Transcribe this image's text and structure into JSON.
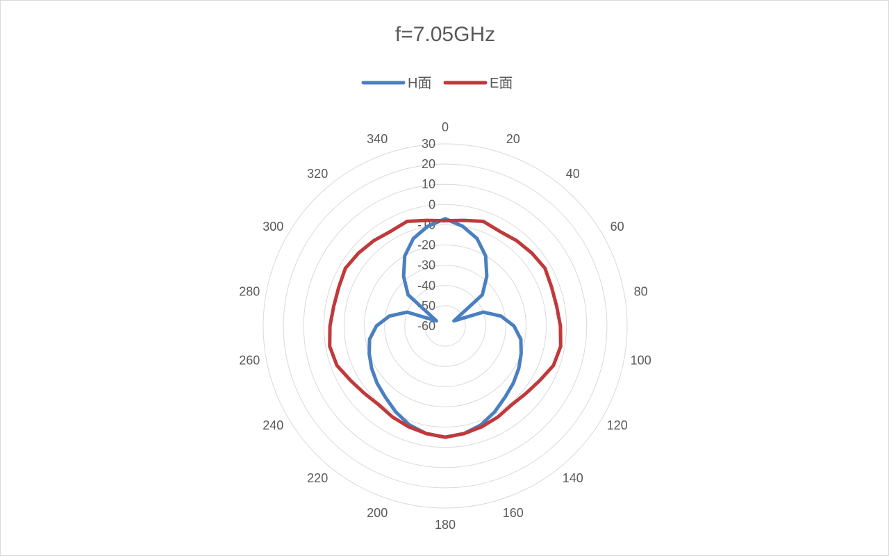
{
  "chart_data": {
    "type": "line",
    "subtype": "radar",
    "title": "f=7.05GHz",
    "legend_position": "top",
    "grid": true,
    "angle_tick_labels": [
      "0",
      "20",
      "40",
      "60",
      "80",
      "100",
      "120",
      "140",
      "160",
      "180",
      "200",
      "220",
      "240",
      "260",
      "280",
      "300",
      "320",
      "340"
    ],
    "radial_tick_labels": [
      "30",
      "20",
      "10",
      "0",
      "-10",
      "-20",
      "-30",
      "-40",
      "-50",
      "-60"
    ],
    "rlim": [
      -60,
      30
    ],
    "series": [
      {
        "name": "H面",
        "color": "#4a7fc1",
        "angles": [
          0,
          10,
          20,
          30,
          40,
          50,
          60,
          70,
          80,
          90,
          100,
          110,
          120,
          130,
          140,
          150,
          160,
          170,
          180,
          190,
          200,
          210,
          220,
          230,
          240,
          250,
          260,
          270,
          280,
          290,
          300,
          310,
          320,
          330,
          340,
          350
        ],
        "values": [
          -7,
          -10,
          -14,
          -20,
          -28,
          -36,
          -55,
          -40,
          -32,
          -26,
          -22,
          -20,
          -18,
          -16,
          -14,
          -11,
          -8,
          -6,
          -5,
          -6,
          -8,
          -11,
          -14,
          -16,
          -18,
          -20,
          -22,
          -26,
          -32,
          -40,
          -55,
          -36,
          -28,
          -20,
          -14,
          -10
        ]
      },
      {
        "name": "E面",
        "color": "#c0393b",
        "angles": [
          0,
          10,
          20,
          30,
          40,
          50,
          60,
          70,
          80,
          90,
          100,
          110,
          120,
          130,
          140,
          150,
          160,
          170,
          180,
          190,
          200,
          210,
          220,
          230,
          240,
          250,
          260,
          270,
          280,
          290,
          300,
          310,
          320,
          330,
          340,
          350
        ],
        "values": [
          -8,
          -7,
          -5,
          -6,
          -5,
          -4,
          -3,
          -4,
          -4,
          -3,
          -2,
          -3,
          -6,
          -8,
          -9,
          -8,
          -7,
          -6,
          -5,
          -6,
          -7,
          -8,
          -9,
          -8,
          -6,
          -3,
          -2,
          -3,
          -4,
          -4,
          -3,
          -4,
          -5,
          -6,
          -5,
          -7
        ]
      }
    ]
  }
}
